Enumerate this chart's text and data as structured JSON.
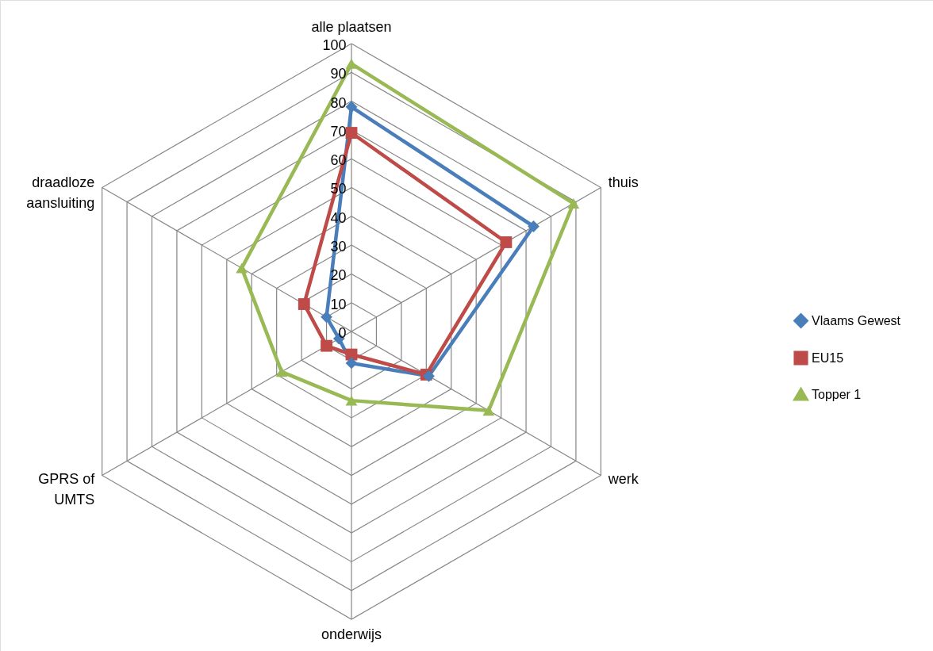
{
  "chart_data": {
    "type": "radar",
    "categories": [
      "alle plaatsen",
      "thuis",
      "werk",
      "onderwijs",
      "GPRS of UMTS",
      "draadloze aansluiting"
    ],
    "series": [
      {
        "name": "Vlaams Gewest",
        "color": "#4a7ebb",
        "marker": "diamond",
        "values": [
          78,
          73,
          31,
          11,
          5,
          10
        ]
      },
      {
        "name": "EU15",
        "color": "#be4b48",
        "marker": "square",
        "values": [
          69,
          62,
          30,
          8,
          10,
          19
        ]
      },
      {
        "name": "Topper 1",
        "color": "#98b954",
        "marker": "triangle",
        "values": [
          93,
          89,
          55,
          24,
          28,
          44
        ]
      }
    ],
    "ylim": [
      0,
      100
    ],
    "yticks": [
      0,
      10,
      20,
      30,
      40,
      50,
      60,
      70,
      80,
      90,
      100
    ],
    "grid": true,
    "legend": "right",
    "line_style": "solid"
  }
}
